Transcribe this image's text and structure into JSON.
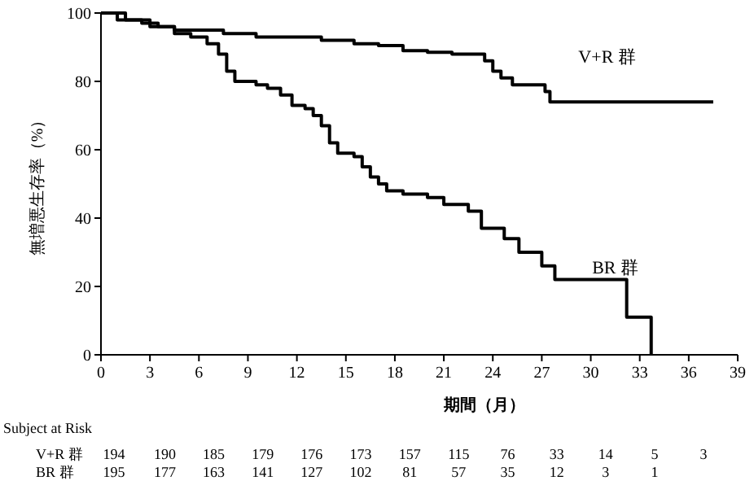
{
  "chart_data": {
    "type": "step",
    "xlabel": "期間（月）",
    "ylabel": "無増悪生存率（%）",
    "xlim": [
      0,
      39
    ],
    "ylim": [
      0,
      100
    ],
    "xticks": [
      0,
      3,
      6,
      9,
      12,
      15,
      18,
      21,
      24,
      27,
      30,
      33,
      36,
      39
    ],
    "yticks": [
      0,
      20,
      40,
      60,
      80,
      100
    ],
    "grid": false,
    "series": [
      {
        "name": "V+R 群",
        "color": "#000000",
        "x": [
          0,
          1,
          2.5,
          3.5,
          4.5,
          7.5,
          9.5,
          13.5,
          15.5,
          17,
          18.5,
          20,
          21.5,
          23.5,
          24,
          24.5,
          25.2,
          27.2,
          27.5,
          37.5
        ],
        "values": [
          100,
          98,
          97,
          96,
          95,
          94,
          93,
          92,
          91,
          90.5,
          89,
          88.5,
          88,
          86,
          83,
          81,
          79,
          77,
          74,
          74
        ]
      },
      {
        "name": "BR 群",
        "color": "#000000",
        "x": [
          0,
          1.5,
          3,
          4.5,
          5.5,
          6.5,
          7.2,
          7.7,
          8.2,
          9.5,
          10.2,
          11,
          11.7,
          12.5,
          13,
          13.5,
          14,
          14.5,
          15.5,
          16,
          16.5,
          17,
          17.5,
          18.5,
          20,
          21,
          22.5,
          23.3,
          24.7,
          25.6,
          27,
          27.8,
          32.2,
          33.7,
          33.7
        ],
        "values": [
          100,
          98,
          96,
          94,
          93,
          91,
          88,
          83,
          80,
          79,
          78,
          76,
          73,
          72,
          70,
          67,
          62,
          59,
          58,
          55,
          52,
          50,
          48,
          47,
          46,
          44,
          42,
          37,
          34,
          30,
          26,
          22,
          11,
          0,
          0
        ]
      }
    ],
    "annotations": [
      "Subject at Risk",
      "194 190 185 179 176 173 157 115 76 33 14 5 3",
      "195 177 163 141 127 102 81 57 35 12 3 1"
    ]
  }
}
